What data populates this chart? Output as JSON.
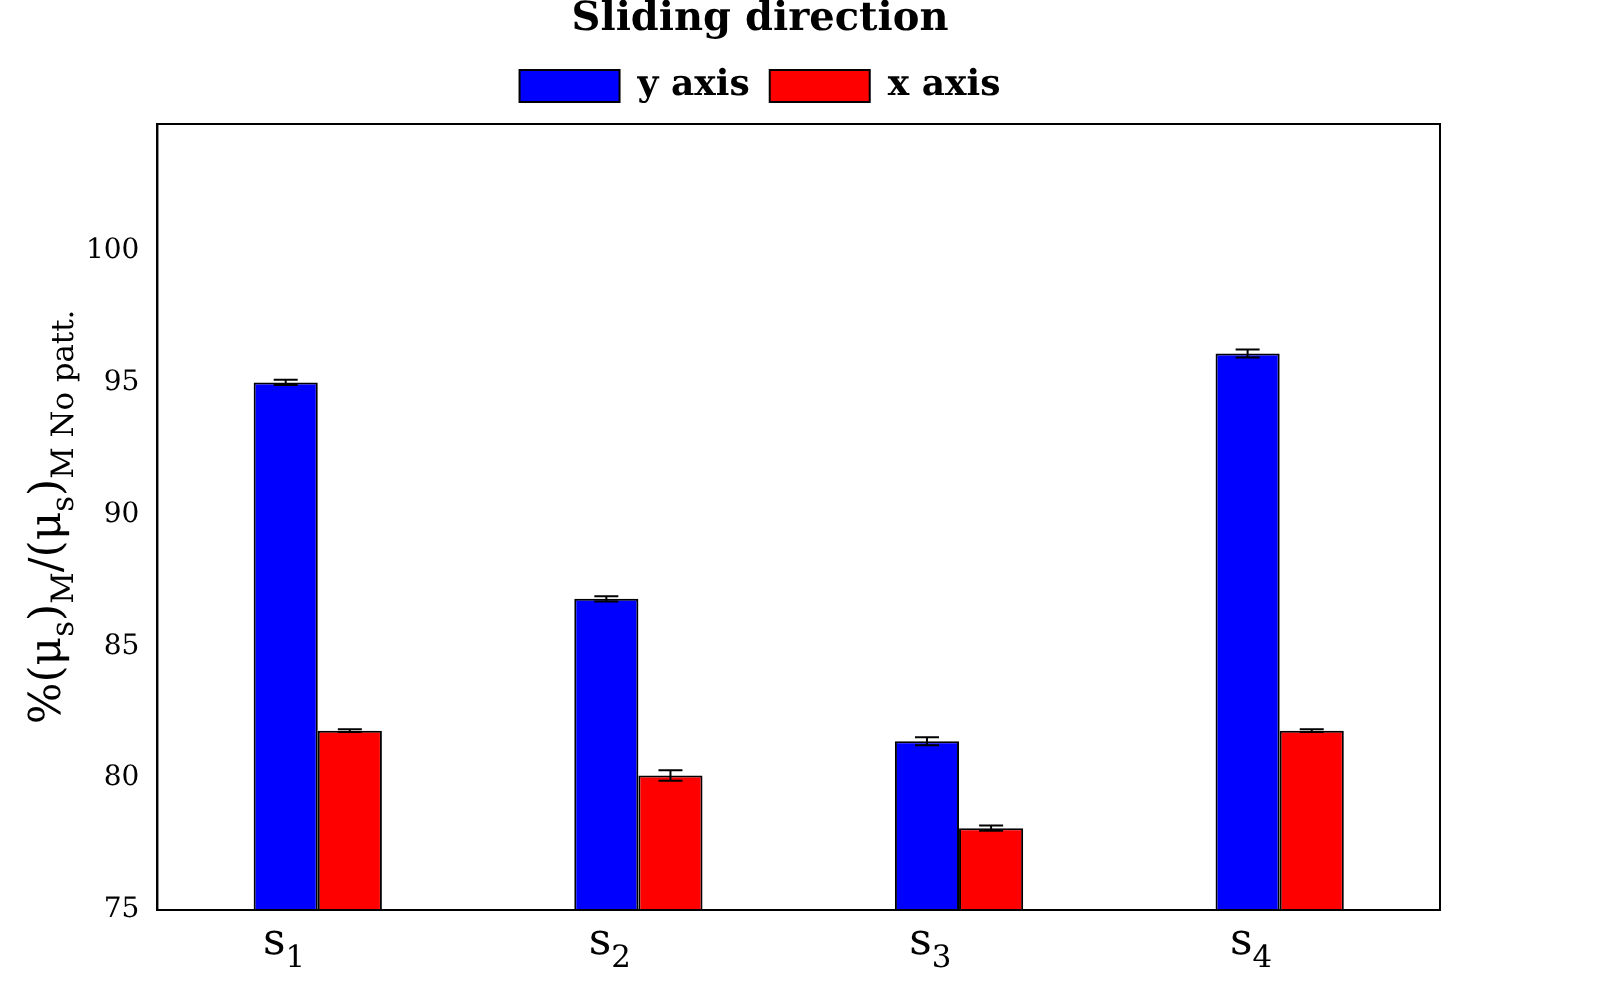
{
  "chart_data": {
    "type": "bar",
    "categories": [
      "s$_{1}$",
      "s$_{2}$",
      "s$_{3}$",
      "s$_{4}$"
    ],
    "ylabel": "%(μ$_{s}$)$_{M}$/(μ$_{s}$)$_{M No patt.}$",
    "legend_title": "Sliding direction",
    "legend": "top",
    "series": [
      {
        "name": "y axis",
        "color": "#0000ff",
        "values": [
          95.0,
          86.8,
          81.4,
          96.1
        ],
        "errors": [
          0.1,
          0.1,
          0.15,
          0.15
        ]
      },
      {
        "name": "x axis",
        "color": "#ff0000",
        "values": [
          81.8,
          80.1,
          78.1,
          81.8
        ],
        "errors": [
          0.05,
          0.2,
          0.1,
          0.05
        ]
      }
    ],
    "ylim": [
      75,
      104.8
    ],
    "yticks": [
      75,
      80,
      85,
      90,
      95,
      100
    ],
    "grid": false
  }
}
